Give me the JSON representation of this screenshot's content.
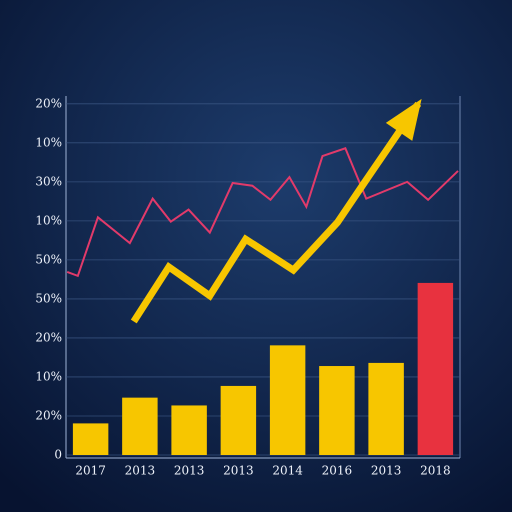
{
  "chart_data": {
    "type": "bar_line",
    "categories": [
      "2017",
      "2013",
      "2013",
      "2013",
      "2014",
      "2016",
      "2013",
      "2018"
    ],
    "values": [
      0.81,
      1.47,
      1.27,
      1.77,
      2.81,
      2.28,
      2.36,
      4.41
    ],
    "colors": [
      "#f7c600",
      "#f7c600",
      "#f7c600",
      "#f7c600",
      "#f7c600",
      "#f7c600",
      "#f7c600",
      "#e8323f"
    ],
    "lines": [
      {
        "color": "#e23a6a",
        "arrow": false,
        "x": [
          0.3,
          3.0,
          8.1,
          16.2,
          22.0,
          26.6,
          31.1,
          36.5,
          42.3,
          47.3,
          51.9,
          56.7,
          61.0,
          65.1,
          70.9,
          76.2,
          86.6,
          91.9,
          99.5
        ],
        "values": [
          4.69,
          4.59,
          6.09,
          5.43,
          6.57,
          5.98,
          6.29,
          5.7,
          6.97,
          6.9,
          6.54,
          7.12,
          6.36,
          7.66,
          7.86,
          6.57,
          7.0,
          6.54,
          7.28
        ]
      },
      {
        "color": "#f7c600",
        "arrow": true,
        "x": [
          17.2,
          26.1,
          36.5,
          45.6,
          57.7,
          68.9,
          76.2,
          89.4
        ],
        "values": [
          3.42,
          4.82,
          4.08,
          5.53,
          4.74,
          5.96,
          7.05,
          9.0
        ]
      }
    ],
    "xlim": [
      0,
      100
    ],
    "ylim": [
      0,
      9.2
    ],
    "yticks": [
      {
        "value": 0,
        "label": "0"
      },
      {
        "value": 1,
        "label": "20%"
      },
      {
        "value": 2,
        "label": "10%"
      },
      {
        "value": 3,
        "label": "20%"
      },
      {
        "value": 4,
        "label": "50%"
      },
      {
        "value": 5,
        "label": "50%"
      },
      {
        "value": 6,
        "label": "10%"
      },
      {
        "value": 7,
        "label": "30%"
      },
      {
        "value": 8,
        "label": "10%"
      },
      {
        "value": 9,
        "label": "20%"
      }
    ],
    "grid": true
  }
}
